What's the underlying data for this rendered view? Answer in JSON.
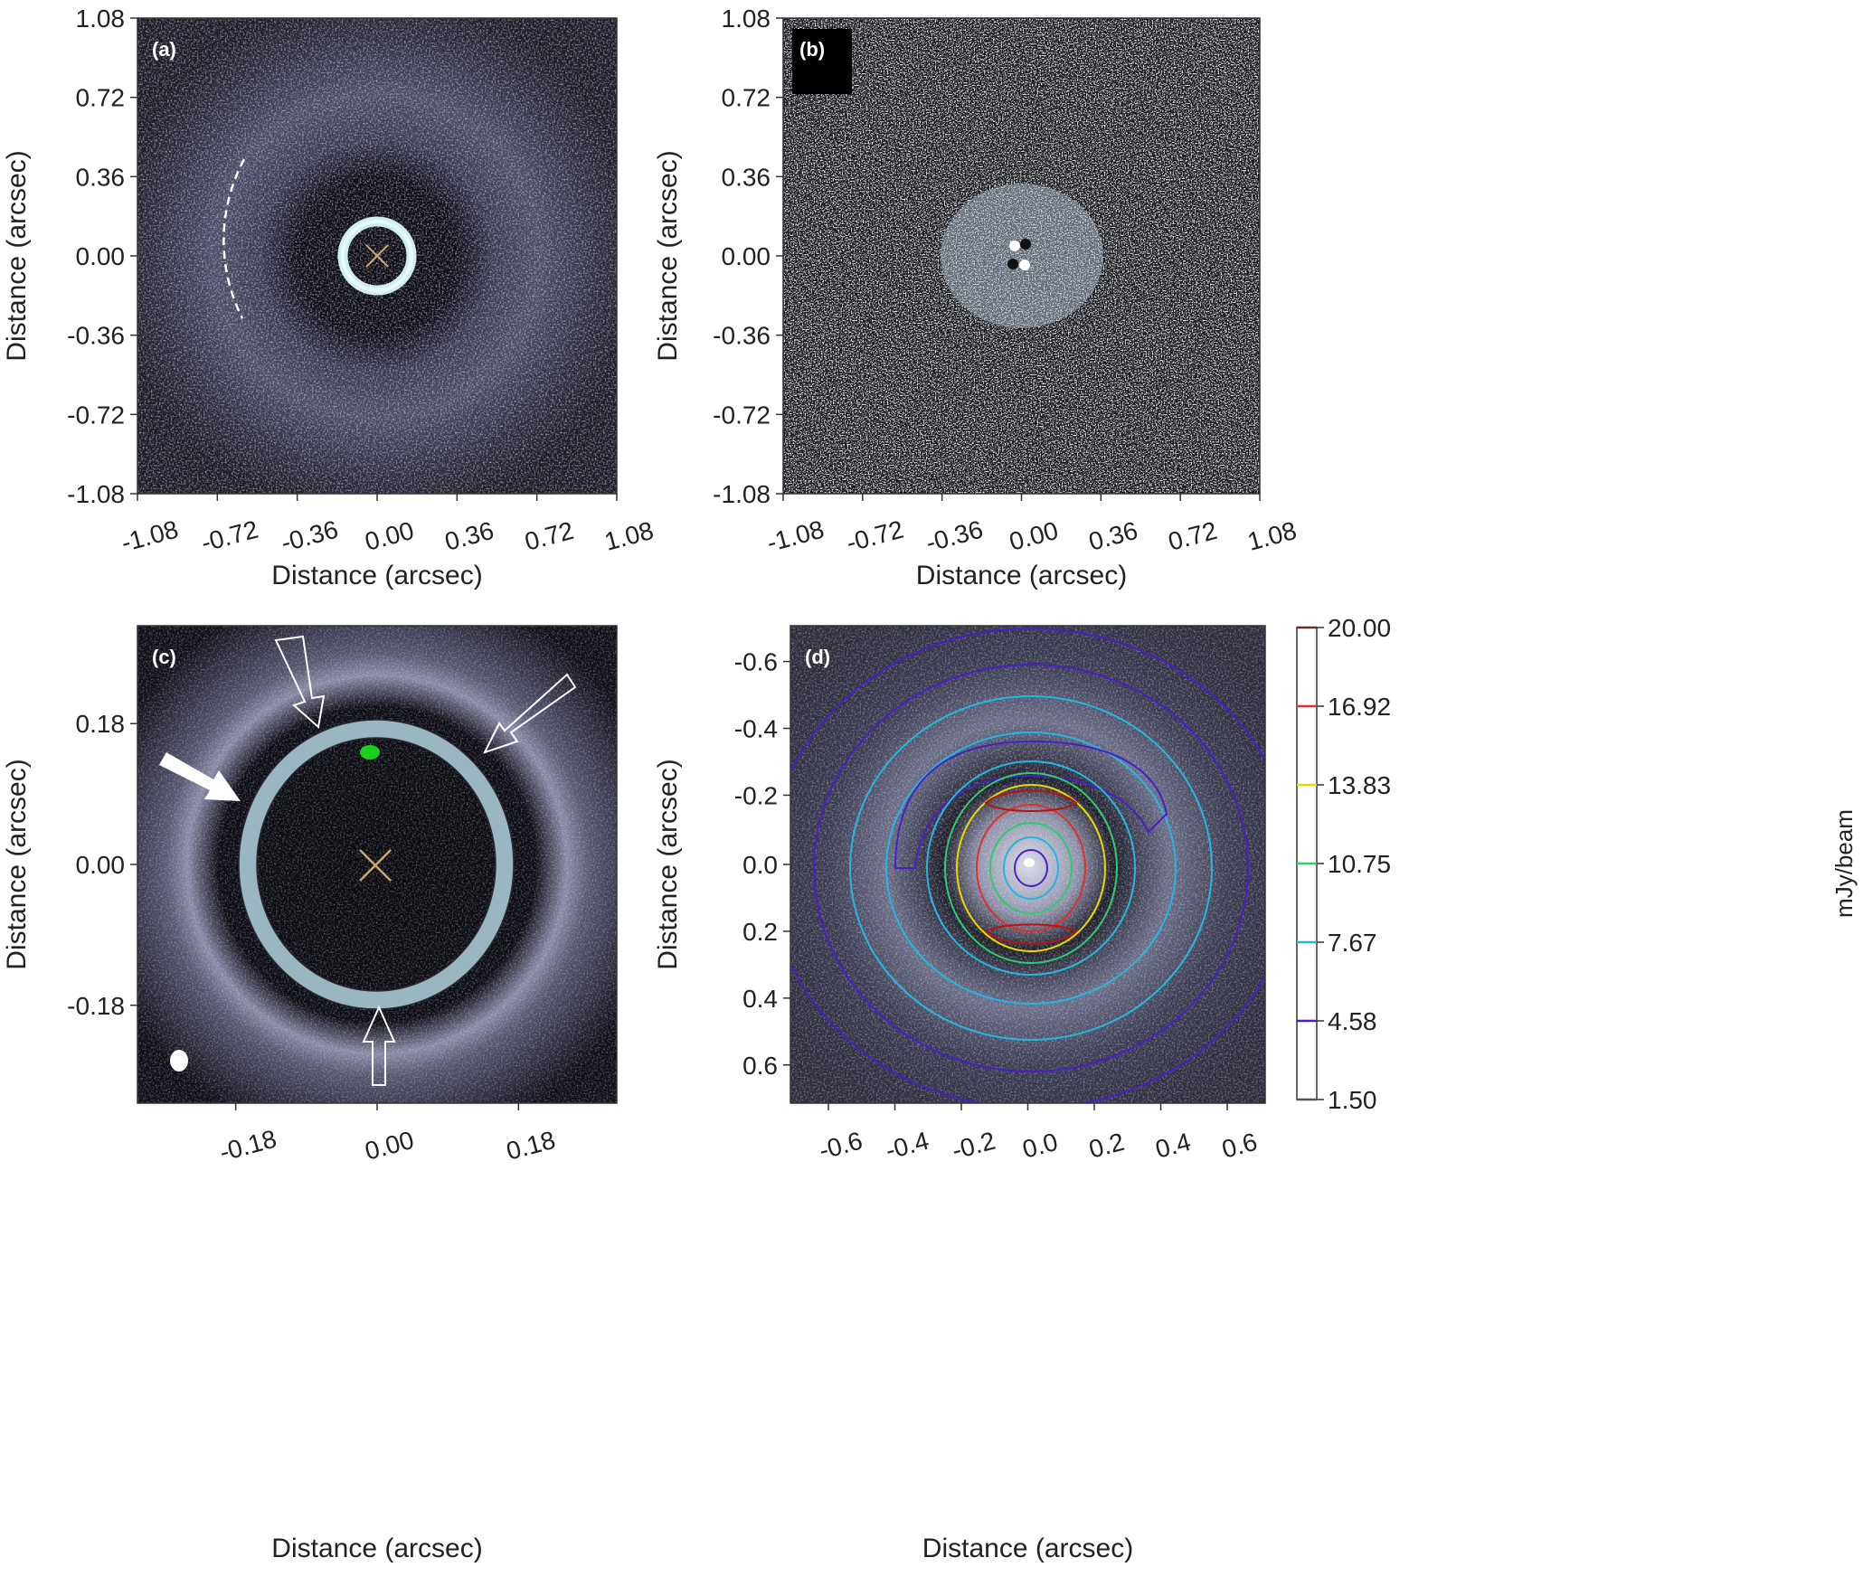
{
  "panels": {
    "a": {
      "letter": "(a)",
      "xlabel": "Distance (arcsec)",
      "ylabel": "Distance (arcsec)",
      "yticks": [
        "1.08",
        "0.72",
        "0.36",
        "0.00",
        "-0.36",
        "-0.72",
        "-1.08"
      ],
      "xticks": [
        "-1.08",
        "-0.72",
        "-0.36",
        "0.00",
        "0.36",
        "0.72",
        "1.08"
      ]
    },
    "b": {
      "letter": "(b)",
      "xlabel": "Distance (arcsec)",
      "ylabel": "Distance (arcsec)",
      "yticks": [
        "1.08",
        "0.72",
        "0.36",
        "0.00",
        "-0.36",
        "-0.72",
        "-1.08"
      ],
      "xticks": [
        "-1.08",
        "-0.72",
        "-0.36",
        "0.00",
        "0.36",
        "0.72",
        "1.08"
      ]
    },
    "c": {
      "letter": "(c)",
      "xlabel": "Distance (arcsec)",
      "ylabel": "Distance (arcsec)",
      "yticks": [
        "0.18",
        "0.00",
        "-0.18"
      ],
      "xticks": [
        "-0.18",
        "0.00",
        "0.18"
      ]
    },
    "d": {
      "letter": "(d)",
      "xlabel": "Distance (arcsec)",
      "ylabel": "Distance (arcsec)",
      "yticks": [
        "-0.6",
        "-0.4",
        "-0.2",
        "0.0",
        "0.2",
        "0.4",
        "0.6"
      ],
      "xticks": [
        "-0.6",
        "-0.4",
        "-0.2",
        "0.0",
        "0.2",
        "0.4",
        "0.6"
      ],
      "colorbar": {
        "title": "mJy/beam",
        "labels": [
          "20.00",
          "16.92",
          "13.83",
          "10.75",
          "7.67",
          "4.58",
          "1.50"
        ],
        "colors": [
          "#6b2a2a",
          "#e0302a",
          "#e8d800",
          "#2ecc70",
          "#22b8e0",
          "#4b1fc8",
          "#ffffff"
        ]
      }
    }
  },
  "colors": {
    "contour_dark_red": "#b01818",
    "contour_red": "#e0302a",
    "contour_yellow": "#e8d800",
    "contour_green": "#2ecc70",
    "contour_cyan": "#22b8e0",
    "contour_indigo": "#4b1fc8",
    "star_marker": "#c8a878",
    "blob_green": "#1ad01a"
  }
}
